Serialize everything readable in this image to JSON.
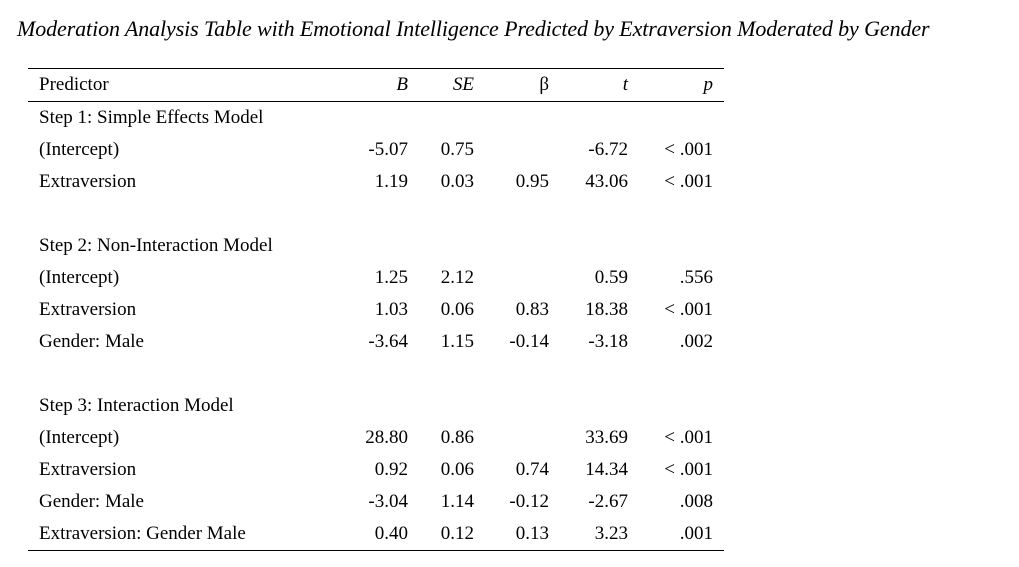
{
  "title": "Moderation Analysis Table with Emotional Intelligence Predicted by Extraversion Moderated by Gender",
  "columns": {
    "predictor": "Predictor",
    "b": "B",
    "se": "SE",
    "beta": "β",
    "t": "t",
    "p": "p"
  },
  "rows": [
    {
      "predictor": "Step 1: Simple Effects Model",
      "b": "",
      "se": "",
      "beta": "",
      "t": "",
      "p": ""
    },
    {
      "predictor": "(Intercept)",
      "b": "-5.07",
      "se": "0.75",
      "beta": "",
      "t": "-6.72",
      "p": "< .001"
    },
    {
      "predictor": "Extraversion",
      "b": "1.19",
      "se": "0.03",
      "beta": "0.95",
      "t": "43.06",
      "p": "< .001"
    },
    {
      "predictor": "",
      "b": "",
      "se": "",
      "beta": "",
      "t": "",
      "p": ""
    },
    {
      "predictor": "Step 2: Non-Interaction Model",
      "b": "",
      "se": "",
      "beta": "",
      "t": "",
      "p": ""
    },
    {
      "predictor": "(Intercept)",
      "b": "1.25",
      "se": "2.12",
      "beta": "",
      "t": "0.59",
      "p": ".556"
    },
    {
      "predictor": "Extraversion",
      "b": "1.03",
      "se": "0.06",
      "beta": "0.83",
      "t": "18.38",
      "p": "< .001"
    },
    {
      "predictor": "Gender: Male",
      "b": "-3.64",
      "se": "1.15",
      "beta": "-0.14",
      "t": "-3.18",
      "p": ".002"
    },
    {
      "predictor": "",
      "b": "",
      "se": "",
      "beta": "",
      "t": "",
      "p": ""
    },
    {
      "predictor": "Step 3: Interaction Model",
      "b": "",
      "se": "",
      "beta": "",
      "t": "",
      "p": ""
    },
    {
      "predictor": "(Intercept)",
      "b": "28.80",
      "se": "0.86",
      "beta": "",
      "t": "33.69",
      "p": "< .001"
    },
    {
      "predictor": "Extraversion",
      "b": "0.92",
      "se": "0.06",
      "beta": "0.74",
      "t": "14.34",
      "p": "< .001"
    },
    {
      "predictor": "Gender: Male",
      "b": "-3.04",
      "se": "1.14",
      "beta": "-0.12",
      "t": "-2.67",
      "p": ".008"
    },
    {
      "predictor": "Extraversion: Gender Male",
      "b": "0.40",
      "se": "0.12",
      "beta": "0.13",
      "t": "3.23",
      "p": ".001"
    }
  ]
}
